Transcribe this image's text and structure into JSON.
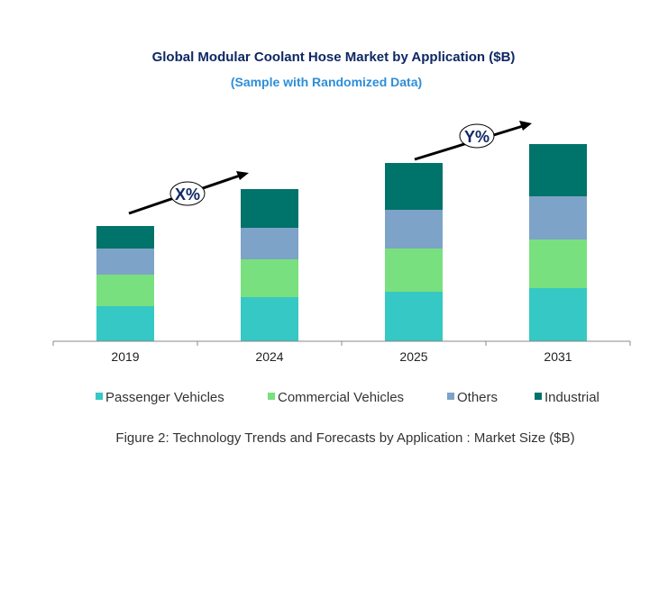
{
  "chart_data": {
    "type": "bar",
    "stacked": true,
    "title": "Global Modular Coolant Hose Market by Application ($B)",
    "subtitle": "(Sample with Randomized Data)",
    "caption": "Figure 2: Technology  Trends  and Forecasts by Application : Market Size ($B)",
    "xlabel": "",
    "ylabel": "",
    "categories": [
      "2019",
      "2024",
      "2025",
      "2031"
    ],
    "ylim": [
      0,
      25
    ],
    "grid": false,
    "legend_position": "bottom",
    "series": [
      {
        "name": "Passenger Vehicles",
        "color": "#36c8c4",
        "values": [
          3.9,
          4.9,
          5.5,
          5.9
        ]
      },
      {
        "name": "Commercial Vehicles",
        "color": "#78e07e",
        "values": [
          3.5,
          4.2,
          4.8,
          5.4
        ]
      },
      {
        "name": "Others",
        "color": "#7ea3c8",
        "values": [
          2.9,
          3.5,
          4.3,
          4.8
        ]
      },
      {
        "name": "Industrial",
        "color": "#00736a",
        "values": [
          2.5,
          4.3,
          5.2,
          5.8
        ]
      }
    ],
    "annotations": [
      {
        "label": "X%",
        "from": "2019",
        "to": "2024"
      },
      {
        "label": "Y%",
        "from": "2025",
        "to": "2031"
      }
    ]
  }
}
